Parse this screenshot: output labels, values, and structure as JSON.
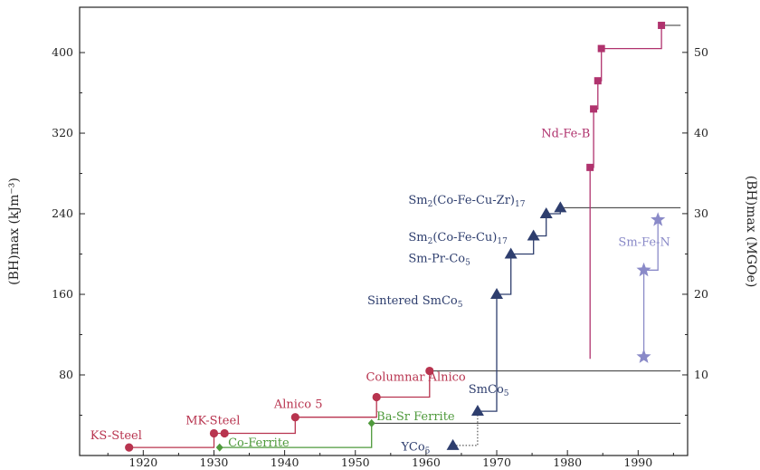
{
  "chart_data": {
    "type": "scatter",
    "title": "",
    "xlabel": "",
    "ylabel": "(BH)max (kJm⁻³)",
    "y2label": "(BH)max (MGOe)",
    "xlim": [
      1911,
      1997
    ],
    "ylim": [
      0,
      445
    ],
    "y2lim": [
      0,
      55.6
    ],
    "xticks": [
      "1920",
      "1930",
      "1940",
      "1950",
      "1960",
      "1970",
      "1980",
      "1990"
    ],
    "yticks": [
      "80",
      "160",
      "240",
      "320",
      "400"
    ],
    "y2ticks": [
      "10",
      "20",
      "30",
      "40",
      "50"
    ],
    "grid": false,
    "legend": "none",
    "colors": {
      "steel": "#b8344f",
      "ferrite": "#4f9a3c",
      "smco": "#2e3e6e",
      "ndfeb": "#b0336e",
      "smfen": "#8a8ac8",
      "axis": "#222222"
    },
    "series": [
      {
        "key": "steel",
        "marker": "circle",
        "points": [
          [
            1918,
            8
          ],
          [
            1930,
            22
          ],
          [
            1931.5,
            22
          ],
          [
            1941.5,
            38
          ],
          [
            1953,
            58
          ],
          [
            1960.5,
            84
          ]
        ],
        "steps": [
          [
            1918,
            8
          ],
          [
            1930,
            8
          ],
          [
            1930,
            22
          ],
          [
            1941.5,
            22
          ],
          [
            1941.5,
            38
          ],
          [
            1953,
            38
          ],
          [
            1953,
            58
          ],
          [
            1960.5,
            58
          ],
          [
            1960.5,
            84
          ]
        ],
        "tail": [
          [
            1960.5,
            84
          ],
          [
            1996,
            84
          ]
        ]
      },
      {
        "key": "ferrite",
        "marker": "diamond",
        "points": [
          [
            1930.8,
            8
          ],
          [
            1952.3,
            32
          ]
        ],
        "steps": [
          [
            1930.8,
            8
          ],
          [
            1952.3,
            8
          ],
          [
            1952.3,
            32
          ]
        ],
        "tail": [
          [
            1952.3,
            32
          ],
          [
            1996,
            32
          ]
        ]
      },
      {
        "key": "smco",
        "marker": "triangle",
        "points": [
          [
            1963.8,
            10
          ],
          [
            1967.3,
            44
          ],
          [
            1970,
            160
          ],
          [
            1972,
            200
          ],
          [
            1975.2,
            218
          ],
          [
            1977,
            240
          ],
          [
            1979,
            246
          ]
        ],
        "steps": [
          [
            1967.3,
            44
          ],
          [
            1970,
            44
          ],
          [
            1970,
            160
          ],
          [
            1972,
            160
          ],
          [
            1972,
            200
          ],
          [
            1975.2,
            200
          ],
          [
            1975.2,
            218
          ],
          [
            1977,
            218
          ],
          [
            1977,
            240
          ],
          [
            1979,
            240
          ],
          [
            1979,
            246
          ]
        ],
        "tail": [
          [
            1979,
            246
          ],
          [
            1996,
            246
          ]
        ],
        "dotted": [
          [
            1963.8,
            10
          ],
          [
            1967.3,
            10
          ],
          [
            1967.3,
            44
          ]
        ]
      },
      {
        "key": "ndfeb",
        "marker": "square",
        "points": [
          [
            1983.2,
            286
          ],
          [
            1983.7,
            344
          ],
          [
            1984.3,
            372
          ],
          [
            1984.8,
            404
          ],
          [
            1993.3,
            427
          ]
        ],
        "steps": [
          [
            1983.2,
            286
          ],
          [
            1983.7,
            286
          ],
          [
            1983.7,
            344
          ],
          [
            1984.3,
            344
          ],
          [
            1984.3,
            372
          ],
          [
            1984.8,
            372
          ],
          [
            1984.8,
            404
          ],
          [
            1993.3,
            404
          ],
          [
            1993.3,
            427
          ]
        ],
        "tail": [
          [
            1993.3,
            427
          ],
          [
            1996,
            427
          ]
        ],
        "drop": [
          [
            1983.2,
            286
          ],
          [
            1983.2,
            96
          ]
        ]
      },
      {
        "key": "smfen",
        "marker": "star",
        "points": [
          [
            1990.8,
            98
          ],
          [
            1990.8,
            184
          ],
          [
            1992.8,
            234
          ]
        ],
        "steps": [
          [
            1990.8,
            98
          ],
          [
            1990.8,
            184
          ],
          [
            1992.8,
            184
          ],
          [
            1992.8,
            234
          ]
        ]
      }
    ],
    "annotations": [
      {
        "name": "label-ks-steel",
        "color": "steel",
        "x": 1912.5,
        "y": 16,
        "parts": [
          {
            "t": "KS-Steel"
          }
        ]
      },
      {
        "name": "label-mk-steel",
        "color": "steel",
        "x": 1926,
        "y": 31,
        "parts": [
          {
            "t": "MK-Steel"
          }
        ]
      },
      {
        "name": "label-co-ferrite",
        "color": "ferrite",
        "x": 1932,
        "y": 9,
        "parts": [
          {
            "t": "Co-Ferrite"
          }
        ]
      },
      {
        "name": "label-alnico-5",
        "color": "steel",
        "x": 1938.5,
        "y": 47,
        "parts": [
          {
            "t": "Alnico 5"
          }
        ]
      },
      {
        "name": "label-ba-sr-ferrite",
        "color": "ferrite",
        "x": 1953,
        "y": 35,
        "parts": [
          {
            "t": "Ba-Sr Ferrite"
          }
        ]
      },
      {
        "name": "label-columnar-alnico",
        "color": "steel",
        "x": 1951.5,
        "y": 74,
        "parts": [
          {
            "t": "Columnar Alnico"
          }
        ]
      },
      {
        "name": "label-smco5",
        "color": "smco",
        "x": 1966,
        "y": 62,
        "parts": [
          {
            "t": "SmCo"
          },
          {
            "t": "5",
            "sub": true
          }
        ]
      },
      {
        "name": "label-yco5",
        "color": "smco",
        "x": 1956.5,
        "y": 5,
        "parts": [
          {
            "t": "YCo"
          },
          {
            "t": "5",
            "sub": true
          }
        ]
      },
      {
        "name": "label-sintered-smco5",
        "color": "smco",
        "x": 1951.7,
        "y": 150,
        "parts": [
          {
            "t": "Sintered SmCo"
          },
          {
            "t": "5",
            "sub": true
          }
        ]
      },
      {
        "name": "label-sm-pr-co5",
        "color": "smco",
        "x": 1957.5,
        "y": 192,
        "parts": [
          {
            "t": "Sm-Pr-Co"
          },
          {
            "t": "5",
            "sub": true
          }
        ]
      },
      {
        "name": "label-sm2-co-fe-cu-17",
        "color": "smco",
        "x": 1957.5,
        "y": 213,
        "parts": [
          {
            "t": "Sm"
          },
          {
            "t": "2",
            "sub": true
          },
          {
            "t": "(Co-Fe-Cu)"
          },
          {
            "t": "17",
            "sub": true
          }
        ]
      },
      {
        "name": "label-sm2-co-fe-cu-zr-17",
        "color": "smco",
        "x": 1957.5,
        "y": 250,
        "parts": [
          {
            "t": "Sm"
          },
          {
            "t": "2",
            "sub": true
          },
          {
            "t": "(Co-Fe-Cu-Zr)"
          },
          {
            "t": "17",
            "sub": true
          }
        ]
      },
      {
        "name": "label-nd-fe-b",
        "color": "ndfeb",
        "x": 1976.3,
        "y": 316,
        "parts": [
          {
            "t": "Nd-Fe-B"
          }
        ]
      },
      {
        "name": "label-sm-fe-n",
        "color": "smfen",
        "x": 1987.2,
        "y": 208,
        "parts": [
          {
            "t": "Sm-Fe-N"
          }
        ]
      }
    ]
  }
}
